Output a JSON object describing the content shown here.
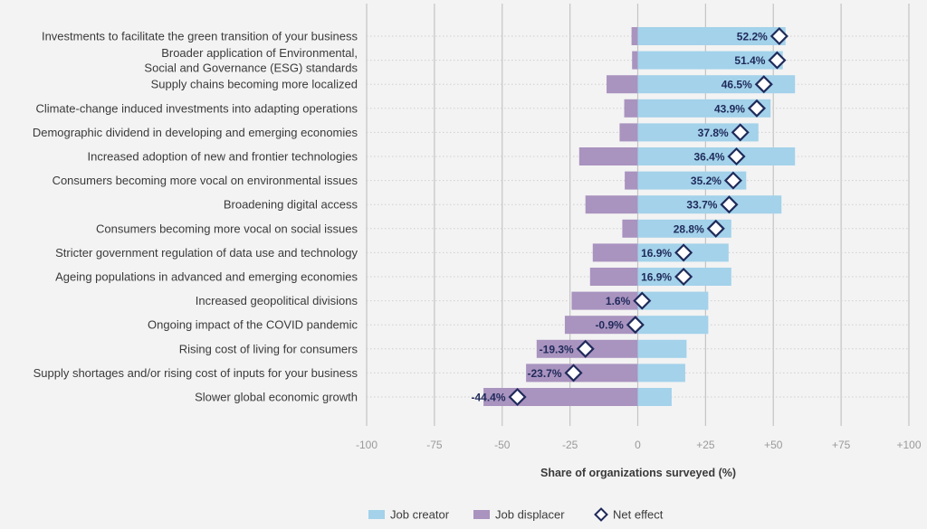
{
  "chart_data": {
    "type": "bar",
    "categories": [
      [
        "Investments to facilitate the green transition of your business"
      ],
      [
        "Broader application of Environmental,",
        "Social and Governance (ESG) standards"
      ],
      [
        "Supply chains becoming more localized"
      ],
      [
        "Climate-change induced investments into adapting operations"
      ],
      [
        "Demographic dividend in developing and emerging economies"
      ],
      [
        "Increased adoption of new and frontier technologies"
      ],
      [
        "Consumers becoming more vocal on environmental issues"
      ],
      [
        "Broadening digital access"
      ],
      [
        "Consumers becoming more vocal on social issues"
      ],
      [
        "Stricter government regulation of data use and technology"
      ],
      [
        "Ageing populations in advanced and emerging economies"
      ],
      [
        "Increased geopolitical divisions"
      ],
      [
        "Ongoing impact of the COVID pandemic"
      ],
      [
        "Rising cost of living for consumers"
      ],
      [
        "Supply shortages and/or rising cost of inputs for your business"
      ],
      [
        "Slower global economic growth"
      ]
    ],
    "series": [
      {
        "name": "Job creator",
        "color": "#a3d2ea",
        "values": [
          54.5,
          53.5,
          58,
          49,
          44.5,
          58,
          40,
          53,
          34.5,
          33.5,
          34.5,
          26,
          26,
          18,
          17.5,
          12.5
        ]
      },
      {
        "name": "Job displacer",
        "color": "#a993bf",
        "values": [
          -2.3,
          -2.1,
          -11.5,
          -5,
          -6.7,
          -21.6,
          -4.8,
          -19.3,
          -5.7,
          -16.6,
          -17.6,
          -24.4,
          -26.9,
          -37.3,
          -41.2,
          -56.9
        ]
      },
      {
        "name": "Net effect",
        "color": "#1f2a5a",
        "values": [
          52.2,
          51.4,
          46.5,
          43.9,
          37.8,
          36.4,
          35.2,
          33.7,
          28.8,
          16.9,
          16.9,
          1.6,
          -0.9,
          -19.3,
          -23.7,
          -44.4
        ],
        "labels": [
          "52.2%",
          "51.4%",
          "46.5%",
          "43.9%",
          "37.8%",
          "36.4%",
          "35.2%",
          "33.7%",
          "28.8%",
          "16.9%",
          "16.9%",
          "1.6%",
          "-0.9%",
          "-19.3%",
          "-23.7%",
          "-44.4%"
        ]
      }
    ],
    "xticks": [
      -100,
      -75,
      -50,
      -25,
      0,
      25,
      50,
      75,
      100
    ],
    "xtick_labels": [
      "-100",
      "-75",
      "-50",
      "-25",
      "0",
      "+25",
      "+50",
      "+75",
      "+100"
    ],
    "xlim": [
      -100,
      100
    ],
    "xlabel": "Share of organizations surveyed (%)",
    "grid": true,
    "legend_position": "bottom-center",
    "legend": [
      "Job creator",
      "Job displacer",
      "Net effect"
    ]
  }
}
